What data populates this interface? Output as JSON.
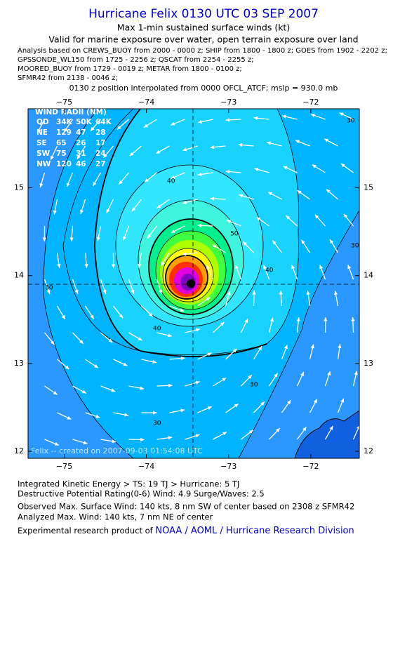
{
  "header": {
    "title": "Hurricane Felix 0130 UTC 03 SEP 2007",
    "subtitle": "Max 1-min sustained surface winds (kt)",
    "validity": "Valid for marine exposure over water, open terrain exposure over land",
    "analysis_lines": [
      "Analysis based on  CREWS_BUOY from 2000 - 0000 z;  SHIP from 1800 - 1800 z;  GOES from 1902 - 2202 z;",
      "GPSSONDE_WL150 from 1725 - 2256 z;  QSCAT from 2254 - 2255 z;",
      "MOORED_BUOY from 1729 - 0019 z;  METAR from 1800 - 0100 z;",
      "SFMR42 from 2138 - 0046 z;"
    ],
    "position_note": "0130 z position interpolated from 0000 OFCL_ATCF; mslp = 930.0 mb"
  },
  "map": {
    "lon_range": [
      -75.44,
      -71.41
    ],
    "lat_range": [
      11.92,
      15.9
    ],
    "lon_ticks": [
      {
        "value": -75,
        "label": "−75"
      },
      {
        "value": -74,
        "label": "−74"
      },
      {
        "value": -73,
        "label": "−73"
      },
      {
        "value": -72,
        "label": "−72"
      }
    ],
    "lat_ticks": [
      15,
      14,
      13,
      12
    ],
    "wind_radii": {
      "title": "WIND RADII (NM)",
      "header": [
        "QD",
        "34K",
        "50K",
        "64K"
      ],
      "rows": [
        [
          "NE",
          "129",
          "47",
          "28"
        ],
        [
          "SE",
          "65",
          "26",
          "17"
        ],
        [
          "SW",
          "75",
          "31",
          "24"
        ],
        [
          "NW",
          "120",
          "46",
          "27"
        ]
      ]
    },
    "contour_labels": [
      "30",
      "30",
      "30",
      "30",
      "30",
      "40",
      "40",
      "40",
      "50"
    ],
    "credit": "Felix -- created on 2007-09-03 01:54:08 UTC"
  },
  "footer": {
    "ike": "Integrated Kinetic Energy > TS: 19 TJ   > Hurricane: 5 TJ",
    "dpr": "Destructive Potential Rating(0-6)   Wind: 4.9 Surge/Waves: 2.5",
    "observed": "Observed Max. Surface Wind: 140 kts, 8 nm SW of center based on 2308 z SFMR42",
    "analyzed": "Analyzed Max. Wind: 140 kts, 7 nm NE of center",
    "product": "Experimental research product of",
    "org": "NOAA / AOML / Hurricane Research Division"
  }
}
